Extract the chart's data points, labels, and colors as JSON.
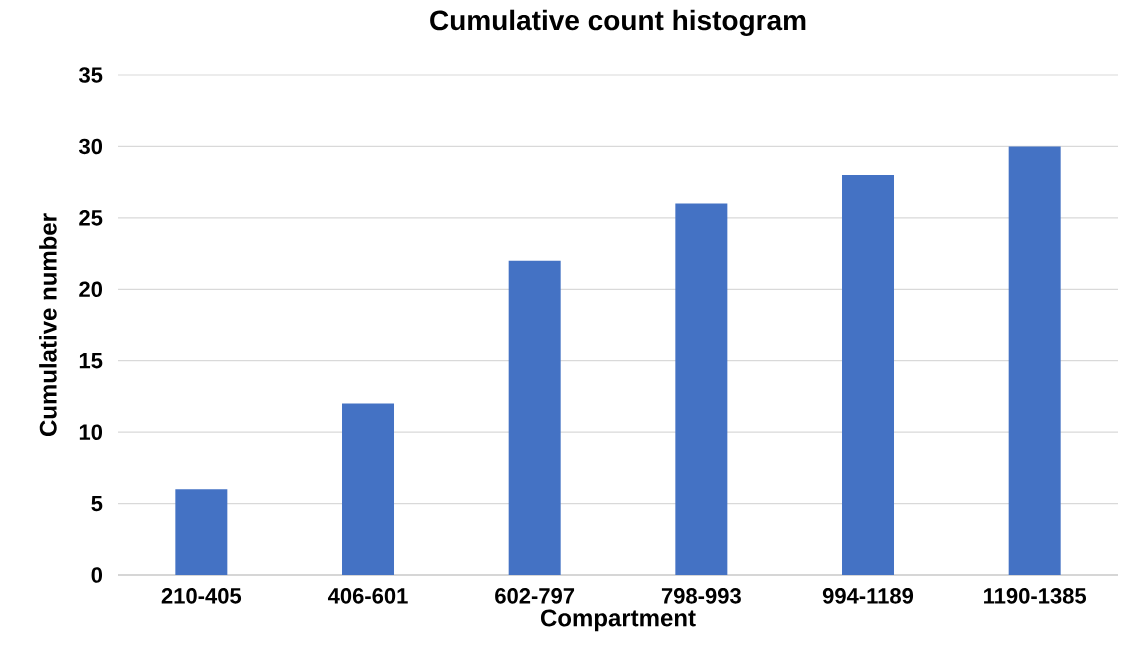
{
  "chart_data": {
    "type": "bar",
    "title": "Cumulative count histogram",
    "xlabel": "Compartment",
    "ylabel": "Cumulative number",
    "categories": [
      "210-405",
      "406-601",
      "602-797",
      "798-993",
      "994-1189",
      "1190-1385"
    ],
    "values": [
      6,
      12,
      22,
      26,
      28,
      30
    ],
    "color": "#4472c4",
    "ylim": [
      0,
      35
    ],
    "yticks": [
      0,
      5,
      10,
      15,
      20,
      25,
      30,
      35
    ],
    "grid": "y"
  }
}
